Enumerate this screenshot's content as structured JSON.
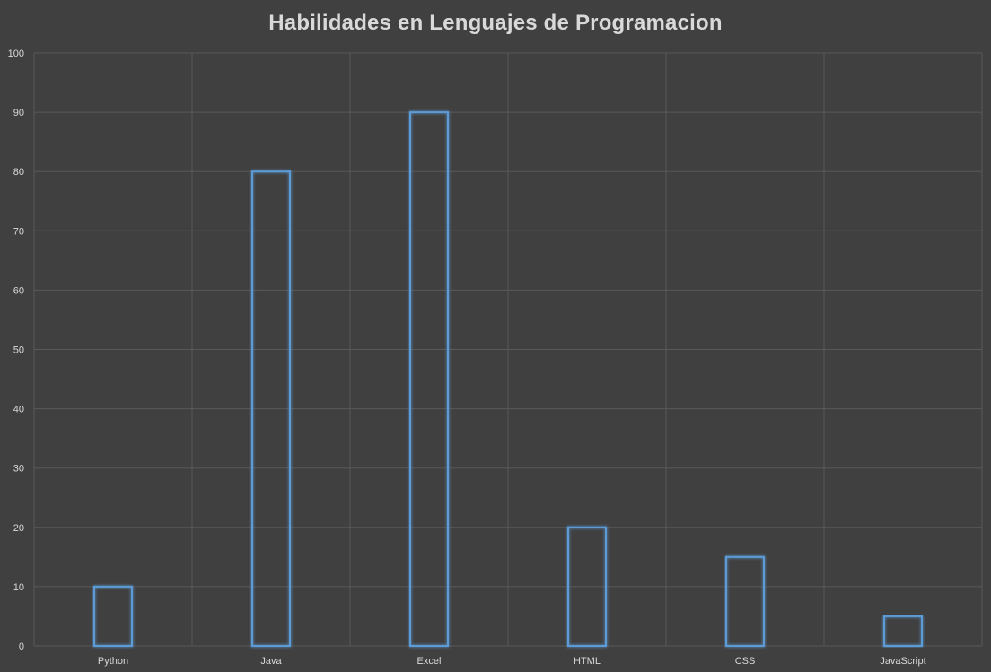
{
  "chart_data": {
    "type": "bar",
    "title": "Habilidades en Lenguajes de Programacion",
    "categories": [
      "Python",
      "Java",
      "Excel",
      "HTML",
      "CSS",
      "JavaScript"
    ],
    "values": [
      10,
      80,
      90,
      20,
      15,
      5
    ],
    "ylim": [
      0,
      100
    ],
    "yticks": [
      0,
      10,
      20,
      30,
      40,
      50,
      60,
      70,
      80,
      90,
      100
    ],
    "xlabel": "",
    "ylabel": "",
    "grid": true,
    "legend": "none"
  },
  "colors": {
    "background": "#404040",
    "bar_outline": "#5b9bd5",
    "gridline": "#595959",
    "text": "#d9d9d9"
  }
}
